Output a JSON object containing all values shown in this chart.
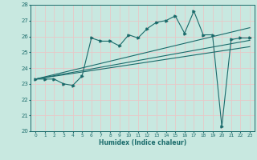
{
  "xlabel": "Humidex (Indice chaleur)",
  "ylabel": "",
  "xlim": [
    -0.5,
    23.5
  ],
  "ylim": [
    20,
    28
  ],
  "yticks": [
    20,
    21,
    22,
    23,
    24,
    25,
    26,
    27,
    28
  ],
  "xticks": [
    0,
    1,
    2,
    3,
    4,
    5,
    6,
    7,
    8,
    9,
    10,
    11,
    12,
    13,
    14,
    15,
    16,
    17,
    18,
    19,
    20,
    21,
    22,
    23
  ],
  "bg_color": "#c8e8e0",
  "line_color": "#1a6b6b",
  "grid_color": "#e8c8c8",
  "main_line_x": [
    0,
    1,
    2,
    3,
    4,
    5,
    6,
    7,
    8,
    9,
    10,
    11,
    12,
    13,
    14,
    15,
    16,
    17,
    18,
    19,
    20,
    21,
    22,
    23
  ],
  "main_line_y": [
    23.3,
    23.3,
    23.3,
    23.0,
    22.9,
    23.5,
    25.9,
    25.7,
    25.7,
    25.4,
    26.1,
    25.9,
    26.5,
    26.9,
    27.0,
    27.3,
    26.2,
    27.6,
    26.1,
    26.1,
    20.3,
    25.8,
    25.9,
    25.9
  ],
  "trend_line1_x": [
    0,
    23
  ],
  "trend_line1_y": [
    23.3,
    26.55
  ],
  "trend_line2_x": [
    0,
    23
  ],
  "trend_line2_y": [
    23.3,
    25.75
  ],
  "trend_line3_x": [
    0,
    23
  ],
  "trend_line3_y": [
    23.3,
    25.35
  ]
}
